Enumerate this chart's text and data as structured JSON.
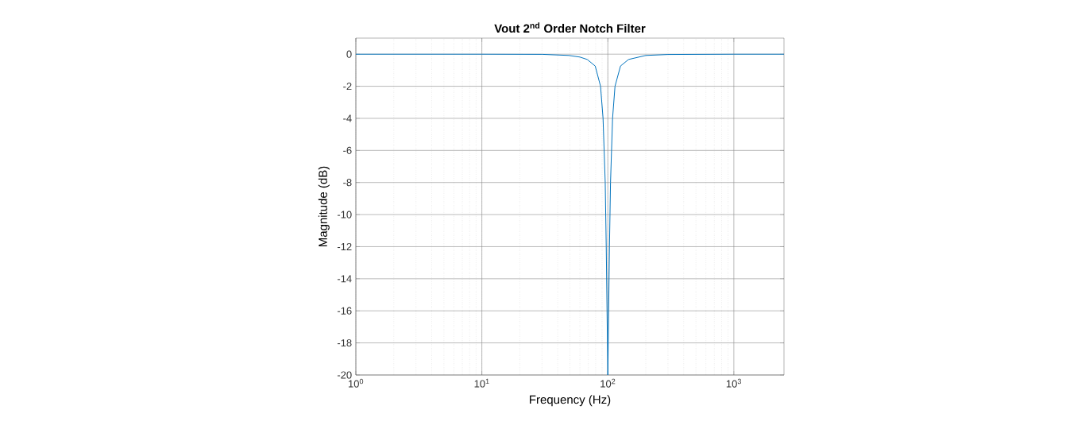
{
  "chart_data": {
    "type": "line",
    "title": "Vout 2$^{nd}$ Order Notch Filter",
    "xlabel": "Frequency (Hz)",
    "ylabel": "Magnitude (dB)",
    "log": "x",
    "grid": true,
    "xlim": [
      1,
      2500
    ],
    "ylim": [
      -20,
      1
    ],
    "xticks": [
      {
        "value": 1,
        "label": "10$^{0}$"
      },
      {
        "value": 10,
        "label": "10$^{1}$"
      },
      {
        "value": 100,
        "label": "10$^{2}$"
      },
      {
        "value": 1000,
        "label": "10$^{3}$"
      }
    ],
    "yticks": [
      -20,
      -18,
      -16,
      -14,
      -12,
      -10,
      -8,
      -6,
      -4,
      -2,
      0
    ],
    "x": [
      1,
      10,
      30,
      49,
      60,
      68.6,
      79.4,
      87.5,
      91.6,
      95.3,
      97.1,
      100,
      103,
      105,
      109,
      114,
      126,
      146,
      200,
      300,
      1000,
      2500
    ],
    "series": [
      {
        "color": "#0072bd",
        "values": [
          0,
          0,
          -0.01,
          -0.08,
          -0.18,
          -0.33,
          -0.74,
          -2,
          -4,
          -8,
          -12,
          -20,
          -12,
          -8,
          -4,
          -2,
          -0.74,
          -0.33,
          -0.08,
          -0.02,
          0,
          0
        ]
      }
    ]
  }
}
